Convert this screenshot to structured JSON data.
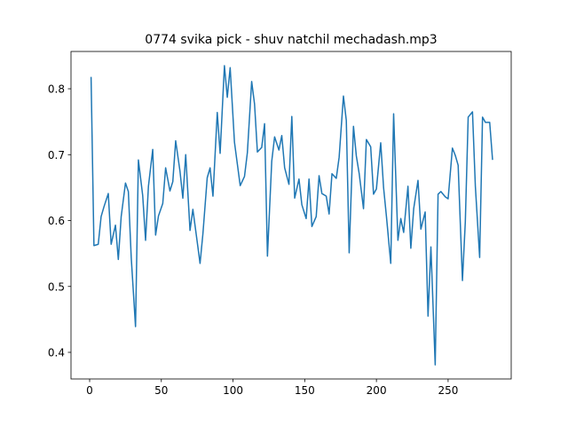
{
  "chart_data": {
    "type": "line",
    "title": "0774 svika pick - shuv natchil mechadash.mp3",
    "x": [
      1,
      3,
      6,
      8,
      10,
      13,
      15,
      18,
      20,
      22,
      25,
      27,
      29,
      32,
      34,
      37,
      39,
      41,
      44,
      46,
      48,
      51,
      53,
      56,
      58,
      60,
      63,
      65,
      67,
      70,
      72,
      75,
      77,
      79,
      82,
      84,
      86,
      89,
      91,
      94,
      96,
      98,
      101,
      103,
      105,
      108,
      110,
      113,
      115,
      117,
      120,
      122,
      124,
      127,
      129,
      132,
      134,
      136,
      139,
      141,
      143,
      146,
      148,
      151,
      153,
      155,
      158,
      160,
      162,
      165,
      167,
      169,
      172,
      174,
      177,
      179,
      181,
      184,
      186,
      188,
      191,
      193,
      196,
      198,
      200,
      203,
      205,
      207,
      210,
      212,
      215,
      217,
      219,
      222,
      224,
      226,
      229,
      231,
      234,
      236,
      238,
      241,
      243,
      245,
      248,
      250,
      253,
      255,
      257,
      260,
      262,
      264,
      267,
      269,
      272,
      274,
      276,
      279,
      281
    ],
    "series": [
      {
        "color": "#1f77b4",
        "values": [
          0.818,
          0.562,
          0.564,
          0.606,
          0.621,
          0.641,
          0.564,
          0.593,
          0.541,
          0.606,
          0.657,
          0.644,
          0.544,
          0.439,
          0.692,
          0.638,
          0.57,
          0.652,
          0.708,
          0.578,
          0.607,
          0.626,
          0.68,
          0.645,
          0.659,
          0.721,
          0.675,
          0.634,
          0.7,
          0.585,
          0.617,
          0.568,
          0.535,
          0.58,
          0.665,
          0.68,
          0.637,
          0.764,
          0.702,
          0.835,
          0.787,
          0.832,
          0.719,
          0.686,
          0.653,
          0.667,
          0.703,
          0.811,
          0.777,
          0.704,
          0.711,
          0.747,
          0.546,
          0.69,
          0.727,
          0.707,
          0.729,
          0.68,
          0.655,
          0.758,
          0.634,
          0.663,
          0.624,
          0.603,
          0.663,
          0.591,
          0.606,
          0.668,
          0.641,
          0.637,
          0.61,
          0.671,
          0.664,
          0.696,
          0.789,
          0.752,
          0.551,
          0.743,
          0.698,
          0.671,
          0.618,
          0.723,
          0.712,
          0.64,
          0.648,
          0.718,
          0.65,
          0.606,
          0.535,
          0.762,
          0.57,
          0.603,
          0.582,
          0.652,
          0.558,
          0.618,
          0.661,
          0.587,
          0.613,
          0.455,
          0.56,
          0.381,
          0.64,
          0.644,
          0.636,
          0.633,
          0.71,
          0.699,
          0.684,
          0.509,
          0.598,
          0.757,
          0.765,
          0.652,
          0.544,
          0.757,
          0.749,
          0.749,
          0.692
        ]
      }
    ],
    "xlim": [
      -13,
      294
    ],
    "xticks": [
      0,
      50,
      100,
      150,
      200,
      250
    ],
    "ylim": [
      0.3596,
      0.8566
    ],
    "yticks": [
      0.4,
      0.5,
      0.6,
      0.7,
      0.8
    ]
  }
}
